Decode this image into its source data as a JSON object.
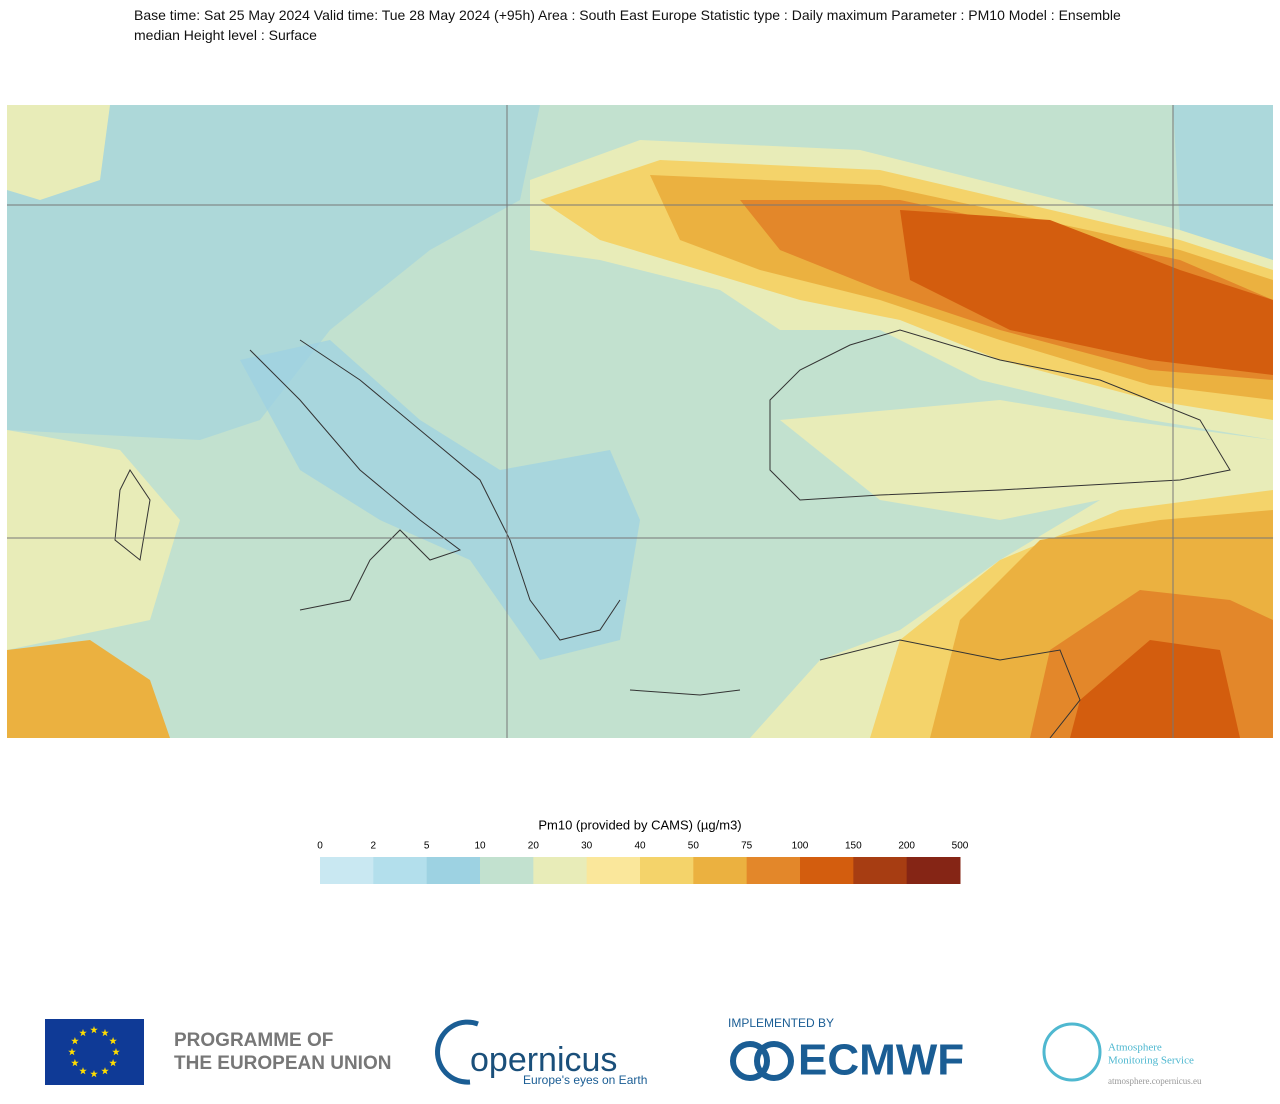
{
  "header": {
    "title": "Base time: Sat 25 May 2024 Valid time: Tue 28 May 2024 (+95h) Area : South East Europe Statistic type : Daily maximum Parameter : PM10 Model : Ensemble median Height level : Surface"
  },
  "legend": {
    "title": "Pm10 (provided by CAMS) (µg/m3)",
    "levels": [
      0,
      2,
      5,
      10,
      20,
      30,
      40,
      50,
      75,
      100,
      150,
      200,
      500
    ],
    "colors": [
      "#c9e8f2",
      "#b3dfec",
      "#9dd2e2",
      "#c2e1cf",
      "#e8ecb8",
      "#fae79b",
      "#f4d36a",
      "#ebb140",
      "#e3872a",
      "#d35d0e",
      "#a73d12",
      "#852515"
    ]
  },
  "footer": {
    "eu_line1": "PROGRAMME OF",
    "eu_line2": "THE EUROPEAN UNION",
    "copernicus_word": "opernicus",
    "copernicus_tagline": "Europe's eyes on Earth",
    "implemented_by": "IMPLEMENTED BY",
    "ecmwf": "ECMWF",
    "ams_line1": "Atmosphere",
    "ams_line2": "Monitoring Service",
    "ams_url": "atmosphere.copernicus.eu"
  }
}
